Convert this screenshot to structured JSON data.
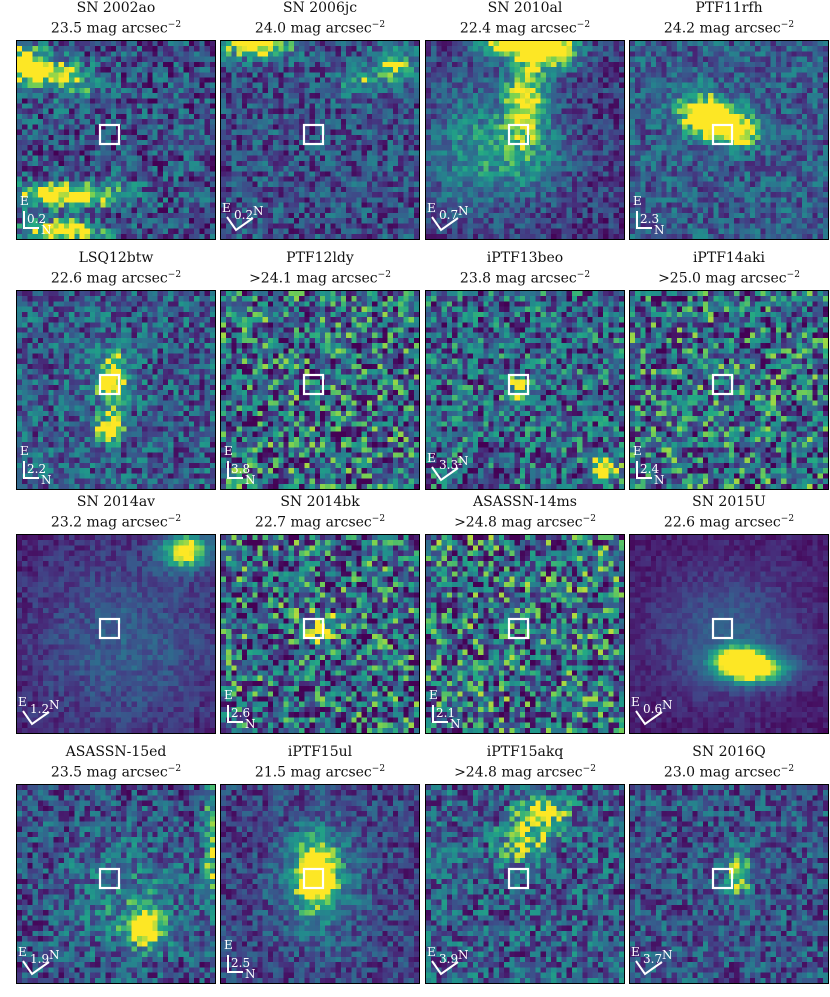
{
  "panels": [
    {
      "name": "SN 2002ao",
      "sb": "23.5",
      "prefix": "",
      "scale": "0.2",
      "compass": "L",
      "blobs": [
        [
          0.25,
          0.78,
          0.28,
          0.06,
          0.95
        ],
        [
          0.24,
          0.96,
          0.18,
          0.05,
          1.0
        ],
        [
          0.01,
          0.12,
          0.14,
          0.1,
          0.9
        ],
        [
          0.17,
          0.15,
          0.12,
          0.06,
          0.55
        ],
        [
          0.3,
          0.22,
          0.12,
          0.08,
          0.45
        ]
      ],
      "bg": 0.3,
      "noise": 0.33,
      "seed": 11
    },
    {
      "name": "SN 2006jc",
      "sb": "24.0",
      "prefix": "",
      "scale": "0.2",
      "compass": "V",
      "blobs": [
        [
          0.18,
          0.0,
          0.18,
          0.08,
          1.0
        ],
        [
          0.88,
          0.12,
          0.1,
          0.1,
          0.6
        ],
        [
          0.7,
          0.2,
          0.12,
          0.08,
          0.4
        ]
      ],
      "bg": 0.3,
      "noise": 0.28,
      "seed": 23
    },
    {
      "name": "SN 2010al",
      "sb": "22.4",
      "prefix": "",
      "scale": "0.7",
      "compass": "V",
      "blobs": [
        [
          0.43,
          0.0,
          0.17,
          0.08,
          1.0
        ],
        [
          0.63,
          0.04,
          0.14,
          0.1,
          1.0
        ],
        [
          0.5,
          0.28,
          0.1,
          0.18,
          0.75
        ],
        [
          0.48,
          0.55,
          0.22,
          0.25,
          0.45
        ],
        [
          0.18,
          0.55,
          0.18,
          0.35,
          0.3
        ]
      ],
      "bg": 0.22,
      "noise": 0.22,
      "seed": 37
    },
    {
      "name": "PTF11rfh",
      "sb": "24.2",
      "prefix": "",
      "scale": "2.3",
      "compass": "L",
      "blobs": [
        [
          0.45,
          0.4,
          0.14,
          0.08,
          0.95
        ],
        [
          0.35,
          0.35,
          0.12,
          0.12,
          0.5
        ],
        [
          0.55,
          0.48,
          0.1,
          0.06,
          0.6
        ]
      ],
      "bg": 0.36,
      "noise": 0.25,
      "seed": 41
    },
    {
      "name": "LSQ12btw",
      "sb": "22.6",
      "prefix": "",
      "scale": "2.2",
      "compass": "L",
      "blobs": [
        [
          0.48,
          0.45,
          0.08,
          0.14,
          0.85
        ],
        [
          0.47,
          0.7,
          0.07,
          0.06,
          1.0
        ]
      ],
      "bg": 0.36,
      "noise": 0.32,
      "seed": 53
    },
    {
      "name": "PTF12ldy",
      "sb": "24.1",
      "prefix": ">",
      "scale": "3.8",
      "compass": "L",
      "blobs": [],
      "bg": 0.42,
      "noise": 0.5,
      "seed": 61
    },
    {
      "name": "iPTF13beo",
      "sb": "23.8",
      "prefix": "",
      "scale": "3.3",
      "compass": "V",
      "blobs": [
        [
          0.47,
          0.5,
          0.06,
          0.08,
          0.6
        ],
        [
          0.9,
          0.9,
          0.06,
          0.06,
          1.0
        ]
      ],
      "bg": 0.4,
      "noise": 0.42,
      "seed": 71
    },
    {
      "name": "iPTF14aki",
      "sb": "25.0",
      "prefix": ">",
      "scale": "2.4",
      "compass": "L",
      "blobs": [],
      "bg": 0.44,
      "noise": 0.48,
      "seed": 83
    },
    {
      "name": "SN 2014av",
      "sb": "23.2",
      "prefix": "",
      "scale": "1.2",
      "compass": "V",
      "blobs": [
        [
          0.85,
          0.08,
          0.12,
          0.09,
          1.0
        ],
        [
          0.55,
          0.55,
          0.45,
          0.45,
          0.25
        ]
      ],
      "bg": 0.12,
      "noise": 0.12,
      "seed": 97
    },
    {
      "name": "SN 2014bk",
      "sb": "22.7",
      "prefix": "",
      "scale": "2.6",
      "compass": "L",
      "blobs": [
        [
          0.5,
          0.48,
          0.07,
          0.07,
          0.6
        ]
      ],
      "bg": 0.42,
      "noise": 0.5,
      "seed": 101
    },
    {
      "name": "ASASSN-14ms",
      "sb": "24.8",
      "prefix": ">",
      "scale": "2.1",
      "compass": "L",
      "blobs": [],
      "bg": 0.44,
      "noise": 0.5,
      "seed": 113
    },
    {
      "name": "SN 2015U",
      "sb": "22.6",
      "prefix": "",
      "scale": "0.6",
      "compass": "V",
      "blobs": [
        [
          0.62,
          0.68,
          0.18,
          0.07,
          1.0
        ],
        [
          0.55,
          0.62,
          0.12,
          0.06,
          0.85
        ],
        [
          0.5,
          0.5,
          0.35,
          0.3,
          0.28
        ]
      ],
      "bg": 0.1,
      "noise": 0.08,
      "seed": 127
    },
    {
      "name": "ASASSN-15ed",
      "sb": "23.5",
      "prefix": "",
      "scale": "1.9",
      "compass": "V",
      "blobs": [
        [
          0.65,
          0.72,
          0.1,
          0.1,
          0.9
        ],
        [
          0.55,
          0.55,
          0.3,
          0.3,
          0.22
        ],
        [
          0.98,
          0.3,
          0.03,
          0.35,
          0.6
        ]
      ],
      "bg": 0.3,
      "noise": 0.3,
      "seed": 131
    },
    {
      "name": "iPTF15ul",
      "sb": "21.5",
      "prefix": "",
      "scale": "2.5",
      "compass": "L",
      "blobs": [
        [
          0.48,
          0.45,
          0.1,
          0.16,
          1.0
        ],
        [
          0.5,
          0.5,
          0.22,
          0.3,
          0.3
        ]
      ],
      "bg": 0.25,
      "noise": 0.22,
      "seed": 139
    },
    {
      "name": "iPTF15akq",
      "sb": "24.8",
      "prefix": ">",
      "scale": "3.9",
      "compass": "V",
      "blobs": [
        [
          0.58,
          0.15,
          0.12,
          0.08,
          0.75
        ],
        [
          0.5,
          0.3,
          0.12,
          0.1,
          0.55
        ]
      ],
      "bg": 0.36,
      "noise": 0.34,
      "seed": 149
    },
    {
      "name": "SN 2016Q",
      "sb": "23.0",
      "prefix": "",
      "scale": "3.7",
      "compass": "V",
      "blobs": [
        [
          0.55,
          0.45,
          0.06,
          0.1,
          0.75
        ]
      ],
      "bg": 0.32,
      "noise": 0.28,
      "seed": 157
    }
  ],
  "unit_text": "mag arcsec",
  "unit_sup": "−2",
  "compass_e": "E",
  "compass_n": "N"
}
